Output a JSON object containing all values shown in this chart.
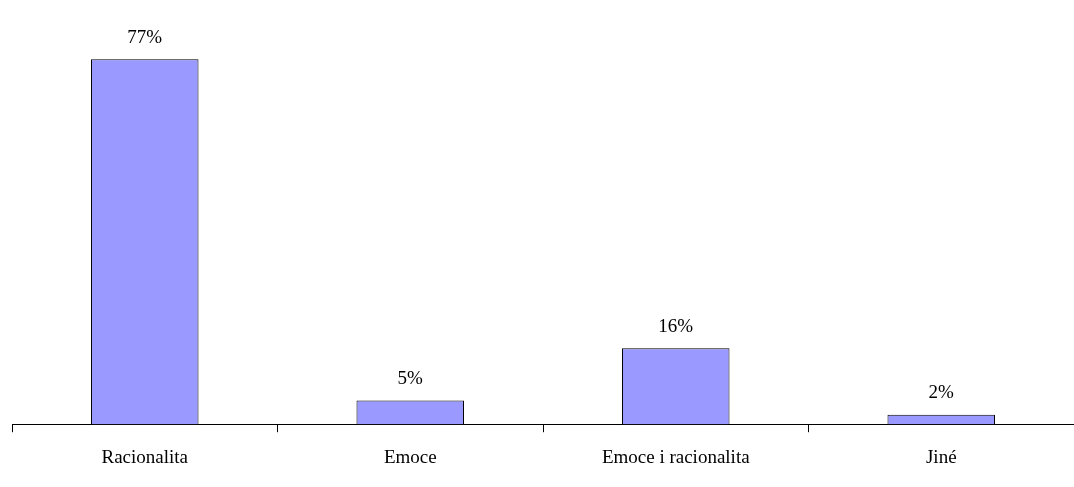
{
  "chart_data": {
    "type": "bar",
    "categories": [
      "Racionalita",
      "Emoce",
      "Emoce i racionalita",
      "Jiné"
    ],
    "values": [
      77,
      5,
      16,
      2
    ],
    "color": "#9999ff",
    "value_labels": [
      "77%",
      "5%",
      "16%",
      "2%"
    ],
    "grid": false,
    "legend": false,
    "tick_labels": "x"
  }
}
